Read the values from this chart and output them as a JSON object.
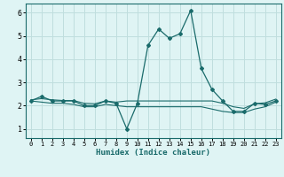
{
  "x": [
    0,
    1,
    2,
    3,
    4,
    5,
    6,
    7,
    8,
    9,
    10,
    11,
    12,
    13,
    14,
    15,
    16,
    17,
    18,
    19,
    20,
    21,
    22,
    23
  ],
  "y_main": [
    2.2,
    2.4,
    2.2,
    2.2,
    2.2,
    2.0,
    2.0,
    2.2,
    2.1,
    1.0,
    2.1,
    4.6,
    5.3,
    4.9,
    5.1,
    6.1,
    3.6,
    2.7,
    2.2,
    1.75,
    1.75,
    2.1,
    2.05,
    2.2
  ],
  "y_lower": [
    2.2,
    2.15,
    2.1,
    2.1,
    2.05,
    1.95,
    1.95,
    2.05,
    2.0,
    1.95,
    1.95,
    1.95,
    1.95,
    1.95,
    1.95,
    1.95,
    1.95,
    1.85,
    1.75,
    1.7,
    1.7,
    1.85,
    1.95,
    2.15
  ],
  "y_upper": [
    2.25,
    2.3,
    2.25,
    2.22,
    2.22,
    2.1,
    2.08,
    2.2,
    2.15,
    2.2,
    2.2,
    2.2,
    2.2,
    2.2,
    2.2,
    2.2,
    2.2,
    2.2,
    2.1,
    1.95,
    1.88,
    2.08,
    2.12,
    2.28
  ],
  "line_color": "#1a6b6b",
  "bg_color": "#dff4f4",
  "grid_color": "#c0dede",
  "xlabel": "Humidex (Indice chaleur)",
  "ylim": [
    0.6,
    6.4
  ],
  "xlim": [
    -0.5,
    23.5
  ],
  "yticks": [
    1,
    2,
    3,
    4,
    5,
    6
  ],
  "xticks": [
    0,
    1,
    2,
    3,
    4,
    5,
    6,
    7,
    8,
    9,
    10,
    11,
    12,
    13,
    14,
    15,
    16,
    17,
    18,
    19,
    20,
    21,
    22,
    23
  ]
}
